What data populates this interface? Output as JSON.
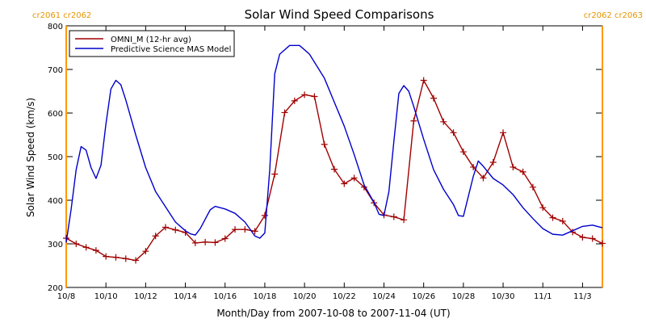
{
  "chart_data": {
    "type": "line",
    "title": "Solar Wind Speed Comparisons",
    "xlabel": "Month/Day from 2007-10-08 to 2007-11-04 (UT)",
    "ylabel": "Solar Wind Speed (km/s)",
    "xlim": [
      "2007-10-08",
      "2007-11-04"
    ],
    "ylim": [
      200,
      800
    ],
    "yticks": [
      200,
      300,
      400,
      500,
      600,
      700,
      800
    ],
    "xtick_labels": [
      "10/8",
      "10/10",
      "10/12",
      "10/14",
      "10/16",
      "10/18",
      "10/20",
      "10/22",
      "10/24",
      "10/26",
      "10/28",
      "10/30",
      "11/1",
      "11/3"
    ],
    "xtick_dates": [
      "2007-10-08",
      "2007-10-10",
      "2007-10-12",
      "2007-10-14",
      "2007-10-16",
      "2007-10-18",
      "2007-10-20",
      "2007-10-22",
      "2007-10-24",
      "2007-10-26",
      "2007-10-28",
      "2007-10-30",
      "2007-11-01",
      "2007-11-03"
    ],
    "rotation_markers": [
      {
        "date": "2007-10-08",
        "labels": [
          "cr2061",
          "cr2062"
        ],
        "position": "left"
      },
      {
        "date": "2007-11-04",
        "labels": [
          "cr2062",
          "cr2063"
        ],
        "position": "right"
      }
    ],
    "legend_position": "top-left",
    "series": [
      {
        "name": "OMNI_M (12-hr avg)",
        "color": "#a00000",
        "marker": "plus",
        "points": [
          [
            "2007-10-08 00:00",
            313
          ],
          [
            "2007-10-08 12:00",
            300
          ],
          [
            "2007-10-09 00:00",
            292
          ],
          [
            "2007-10-09 12:00",
            285
          ],
          [
            "2007-10-10 00:00",
            271
          ],
          [
            "2007-10-10 12:00",
            269
          ],
          [
            "2007-10-11 00:00",
            266
          ],
          [
            "2007-10-11 12:00",
            262
          ],
          [
            "2007-10-12 00:00",
            283
          ],
          [
            "2007-10-12 12:00",
            318
          ],
          [
            "2007-10-13 00:00",
            338
          ],
          [
            "2007-10-13 12:00",
            332
          ],
          [
            "2007-10-14 00:00",
            326
          ],
          [
            "2007-10-14 12:00",
            302
          ],
          [
            "2007-10-15 00:00",
            304
          ],
          [
            "2007-10-15 12:00",
            303
          ],
          [
            "2007-10-16 00:00",
            312
          ],
          [
            "2007-10-16 12:00",
            333
          ],
          [
            "2007-10-17 00:00",
            333
          ],
          [
            "2007-10-17 12:00",
            329
          ],
          [
            "2007-10-18 00:00",
            365
          ],
          [
            "2007-10-18 12:00",
            460
          ],
          [
            "2007-10-19 00:00",
            601
          ],
          [
            "2007-10-19 12:00",
            628
          ],
          [
            "2007-10-20 00:00",
            642
          ],
          [
            "2007-10-20 12:00",
            638
          ],
          [
            "2007-10-21 00:00",
            528
          ],
          [
            "2007-10-21 12:00",
            471
          ],
          [
            "2007-10-22 00:00",
            438
          ],
          [
            "2007-10-22 12:00",
            451
          ],
          [
            "2007-10-23 00:00",
            430
          ],
          [
            "2007-10-23 12:00",
            394
          ],
          [
            "2007-10-24 00:00",
            366
          ],
          [
            "2007-10-24 12:00",
            362
          ],
          [
            "2007-10-25 00:00",
            355
          ],
          [
            "2007-10-25 12:00",
            582
          ],
          [
            "2007-10-26 00:00",
            675
          ],
          [
            "2007-10-26 12:00",
            634
          ],
          [
            "2007-10-27 00:00",
            580
          ],
          [
            "2007-10-27 12:00",
            555
          ],
          [
            "2007-10-28 00:00",
            511
          ],
          [
            "2007-10-28 12:00",
            476
          ],
          [
            "2007-10-29 00:00",
            451
          ],
          [
            "2007-10-29 12:00",
            487
          ],
          [
            "2007-10-30 00:00",
            555
          ],
          [
            "2007-10-30 12:00",
            476
          ],
          [
            "2007-10-31 00:00",
            465
          ],
          [
            "2007-10-31 12:00",
            430
          ],
          [
            "2007-11-01 00:00",
            383
          ],
          [
            "2007-11-01 12:00",
            360
          ],
          [
            "2007-11-02 00:00",
            352
          ],
          [
            "2007-11-02 12:00",
            327
          ],
          [
            "2007-11-03 00:00",
            315
          ],
          [
            "2007-11-03 12:00",
            312
          ],
          [
            "2007-11-04 00:00",
            301
          ]
        ]
      },
      {
        "name": "Predictive Science MAS Model",
        "color": "#0000cc",
        "marker": "none",
        "points": [
          [
            "2007-10-08 00:00",
            303
          ],
          [
            "2007-10-08 06:00",
            380
          ],
          [
            "2007-10-08 12:00",
            470
          ],
          [
            "2007-10-08 18:00",
            523
          ],
          [
            "2007-10-09 00:00",
            515
          ],
          [
            "2007-10-09 06:00",
            475
          ],
          [
            "2007-10-09 12:00",
            450
          ],
          [
            "2007-10-09 18:00",
            480
          ],
          [
            "2007-10-10 00:00",
            575
          ],
          [
            "2007-10-10 06:00",
            655
          ],
          [
            "2007-10-10 12:00",
            675
          ],
          [
            "2007-10-10 18:00",
            665
          ],
          [
            "2007-10-11 00:00",
            630
          ],
          [
            "2007-10-11 12:00",
            550
          ],
          [
            "2007-10-12 00:00",
            475
          ],
          [
            "2007-10-12 12:00",
            420
          ],
          [
            "2007-10-13 00:00",
            385
          ],
          [
            "2007-10-13 12:00",
            350
          ],
          [
            "2007-10-14 00:00",
            330
          ],
          [
            "2007-10-14 06:00",
            323
          ],
          [
            "2007-10-14 12:00",
            320
          ],
          [
            "2007-10-14 18:00",
            335
          ],
          [
            "2007-10-15 06:00",
            378
          ],
          [
            "2007-10-15 12:00",
            386
          ],
          [
            "2007-10-16 00:00",
            380
          ],
          [
            "2007-10-16 12:00",
            370
          ],
          [
            "2007-10-17 00:00",
            350
          ],
          [
            "2007-10-17 12:00",
            318
          ],
          [
            "2007-10-17 18:00",
            313
          ],
          [
            "2007-10-18 00:00",
            325
          ],
          [
            "2007-10-18 06:00",
            470
          ],
          [
            "2007-10-18 12:00",
            690
          ],
          [
            "2007-10-18 18:00",
            735
          ],
          [
            "2007-10-19 06:00",
            755
          ],
          [
            "2007-10-19 18:00",
            755
          ],
          [
            "2007-10-20 06:00",
            735
          ],
          [
            "2007-10-21 00:00",
            680
          ],
          [
            "2007-10-21 12:00",
            625
          ],
          [
            "2007-10-22 00:00",
            570
          ],
          [
            "2007-10-22 12:00",
            505
          ],
          [
            "2007-10-23 00:00",
            435
          ],
          [
            "2007-10-23 12:00",
            395
          ],
          [
            "2007-10-23 18:00",
            368
          ],
          [
            "2007-10-24 00:00",
            365
          ],
          [
            "2007-10-24 06:00",
            420
          ],
          [
            "2007-10-24 12:00",
            535
          ],
          [
            "2007-10-24 18:00",
            645
          ],
          [
            "2007-10-25 00:00",
            663
          ],
          [
            "2007-10-25 06:00",
            650
          ],
          [
            "2007-10-25 12:00",
            615
          ],
          [
            "2007-10-26 00:00",
            540
          ],
          [
            "2007-10-26 12:00",
            470
          ],
          [
            "2007-10-27 00:00",
            425
          ],
          [
            "2007-10-27 12:00",
            390
          ],
          [
            "2007-10-27 18:00",
            365
          ],
          [
            "2007-10-28 00:00",
            363
          ],
          [
            "2007-10-28 12:00",
            455
          ],
          [
            "2007-10-28 18:00",
            490
          ],
          [
            "2007-10-29 00:00",
            478
          ],
          [
            "2007-10-29 12:00",
            450
          ],
          [
            "2007-10-30 00:00",
            435
          ],
          [
            "2007-10-30 12:00",
            413
          ],
          [
            "2007-10-31 00:00",
            383
          ],
          [
            "2007-10-31 12:00",
            358
          ],
          [
            "2007-11-01 00:00",
            335
          ],
          [
            "2007-11-01 12:00",
            322
          ],
          [
            "2007-11-02 00:00",
            320
          ],
          [
            "2007-11-02 12:00",
            330
          ],
          [
            "2007-11-03 00:00",
            340
          ],
          [
            "2007-11-03 12:00",
            343
          ],
          [
            "2007-11-04 00:00",
            337
          ]
        ]
      }
    ]
  }
}
